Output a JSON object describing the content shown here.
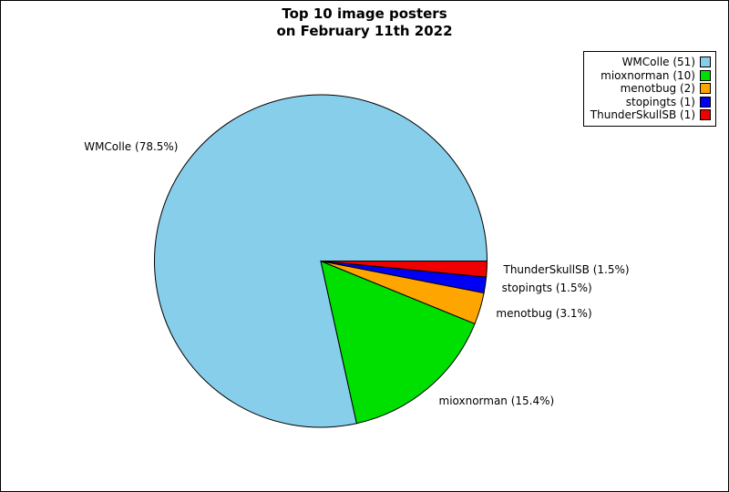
{
  "chart_data": {
    "type": "pie",
    "title": "Top 10 image posters\non February 11th 2022",
    "names": [
      "WMColle",
      "mioxnorman",
      "menotbug",
      "stopingts",
      "ThunderSkullSB"
    ],
    "values": [
      51,
      10,
      2,
      1,
      1
    ],
    "percentages": [
      78.5,
      15.4,
      3.1,
      1.5,
      1.5
    ],
    "slice_labels": [
      "WMColle (78.5%)",
      "mioxnorman (15.4%)",
      "menotbug (3.1%)",
      "stopingts (1.5%)",
      "ThunderSkullSB (1.5%)"
    ],
    "legend_labels": [
      "WMColle (51)",
      "mioxnorman (10)",
      "menotbug (2)",
      "stopingts (1)",
      "ThunderSkullSB (1)"
    ],
    "colors": [
      "#87CEEB",
      "#00E000",
      "#FFA500",
      "#0000F5",
      "#F00000"
    ],
    "edge_color": "#000000",
    "background_color": "#FFFFFF",
    "start_angle_deg": 0,
    "direction": "counterclockwise",
    "legend_position": "upper right"
  }
}
